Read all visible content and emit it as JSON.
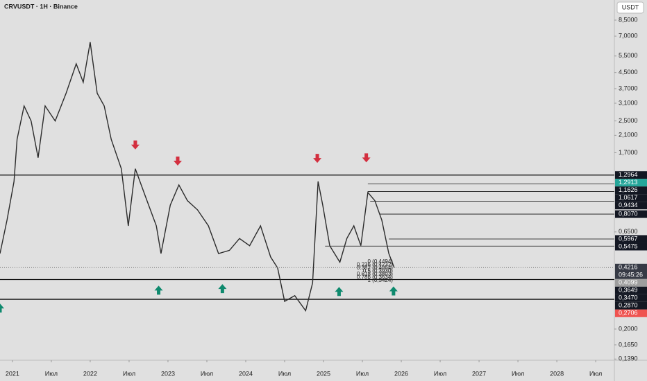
{
  "chart_data": {
    "type": "line",
    "title": "CRVUSDT · 1H · Binance",
    "currency": "USDT",
    "log_y": true,
    "color": "#2b2b2b",
    "ylim": [
      0.137,
      10.85
    ],
    "yticks": [
      {
        "value": 8.5,
        "label": "8,5000"
      },
      {
        "value": 7.0,
        "label": "7,0000"
      },
      {
        "value": 5.5,
        "label": "5,5000"
      },
      {
        "value": 4.5,
        "label": "4,5000"
      },
      {
        "value": 3.7,
        "label": "3,7000"
      },
      {
        "value": 3.1,
        "label": "3,1000"
      },
      {
        "value": 2.5,
        "label": "2,5000"
      },
      {
        "value": 2.1,
        "label": "2,1000"
      },
      {
        "value": 1.7,
        "label": "1,7000"
      },
      {
        "value": 0.65,
        "label": "0,6500"
      },
      {
        "value": 0.2,
        "label": "0,2000"
      },
      {
        "value": 0.165,
        "label": "0,1650"
      },
      {
        "value": 0.139,
        "label": "0,1390"
      }
    ],
    "xlim": [
      2020.84,
      2028.74
    ],
    "xticks": [
      {
        "value": 2021,
        "label": "2021"
      },
      {
        "value": 2021.5,
        "label": "Июл"
      },
      {
        "value": 2022,
        "label": "2022"
      },
      {
        "value": 2022.5,
        "label": "Июл"
      },
      {
        "value": 2023,
        "label": "2023"
      },
      {
        "value": 2023.5,
        "label": "Июл"
      },
      {
        "value": 2024,
        "label": "2024"
      },
      {
        "value": 2024.5,
        "label": "Июл"
      },
      {
        "value": 2025,
        "label": "2025"
      },
      {
        "value": 2025.5,
        "label": "Июл"
      },
      {
        "value": 2026,
        "label": "2026"
      },
      {
        "value": 2026.5,
        "label": "Июл"
      },
      {
        "value": 2027,
        "label": "2027"
      },
      {
        "value": 2027.5,
        "label": "Июл"
      },
      {
        "value": 2028,
        "label": "2028"
      },
      {
        "value": 2028.5,
        "label": "Июл"
      }
    ],
    "x": [
      2020.84,
      2020.93,
      2021.02,
      2021.06,
      2021.15,
      2021.24,
      2021.33,
      2021.42,
      2021.55,
      2021.69,
      2021.82,
      2021.91,
      2022.0,
      2022.09,
      2022.18,
      2022.27,
      2022.4,
      2022.49,
      2022.58,
      2022.71,
      2022.85,
      2022.91,
      2023.03,
      2023.14,
      2023.25,
      2023.38,
      2023.52,
      2023.65,
      2023.79,
      2023.92,
      2024.05,
      2024.19,
      2024.32,
      2024.41,
      2024.5,
      2024.63,
      2024.77,
      2024.86,
      2024.93,
      2024.99,
      2025.08,
      2025.21,
      2025.3,
      2025.39,
      2025.48,
      2025.57,
      2025.66,
      2025.75,
      2025.84,
      2025.91
    ],
    "values": [
      0.5,
      0.75,
      1.2,
      2.0,
      3.0,
      2.5,
      1.6,
      3.0,
      2.5,
      3.5,
      5.0,
      4.0,
      6.5,
      3.5,
      3.0,
      2.0,
      1.4,
      0.7,
      1.4,
      1.0,
      0.7,
      0.5,
      0.9,
      1.15,
      0.95,
      0.85,
      0.7,
      0.5,
      0.52,
      0.6,
      0.55,
      0.7,
      0.48,
      0.42,
      0.28,
      0.3,
      0.25,
      0.35,
      1.2,
      0.9,
      0.55,
      0.45,
      0.6,
      0.7,
      0.55,
      1.05,
      0.95,
      0.75,
      0.5,
      0.42
    ],
    "levels": [
      {
        "value": 1.2964,
        "label": "1,2964"
      },
      {
        "value": 0.3649,
        "label": "0,3649"
      },
      {
        "value": 0.287,
        "label": "0,2870"
      },
      {
        "value": 1.1626,
        "label": "1,1626",
        "from": 2025.57
      },
      {
        "value": 1.0617,
        "label": "1,0617",
        "from": 2025.57
      },
      {
        "value": 0.9434,
        "label": "0,9434",
        "from": 2025.6
      },
      {
        "value": 0.807,
        "label": "0,8070",
        "from": 2025.72
      },
      {
        "value": 0.5967,
        "label": "0,5967",
        "from": 2025.84
      },
      {
        "value": 0.5475,
        "label": "0,5475",
        "from": 2025.02
      }
    ],
    "price_labels": [
      {
        "value": 1.2913,
        "label": "1,2913",
        "color": "#26a69a"
      },
      {
        "value": 0.4216,
        "label": "0,4216",
        "color": "#363a45",
        "countdown": "09:45:26"
      },
      {
        "value": 0.4099,
        "label": "0,4099",
        "color": "#9e9e9e"
      },
      {
        "value": 0.347,
        "label": "0,3470",
        "color": "#131722"
      },
      {
        "value": 0.2706,
        "label": "0,2706",
        "color": "#ef5350"
      }
    ],
    "fib_labels": [
      "0 (0,4494)",
      "0.236 (0,4232)",
      "0.382 (0,4064)",
      "0.5 (0,3930)",
      "0.618 (0,3803)",
      "0.786 (0,3634)",
      "1 (0,3424)"
    ],
    "arrows": [
      {
        "x": 2022.58,
        "price": 1.86,
        "direction": "down"
      },
      {
        "x": 2023.125,
        "price": 1.53,
        "direction": "down"
      },
      {
        "x": 2024.92,
        "price": 1.58,
        "direction": "down"
      },
      {
        "x": 2025.55,
        "price": 1.59,
        "direction": "down"
      },
      {
        "x": 2022.88,
        "price": 0.322,
        "direction": "up"
      },
      {
        "x": 2023.7,
        "price": 0.328,
        "direction": "up"
      },
      {
        "x": 2025.2,
        "price": 0.317,
        "direction": "up"
      },
      {
        "x": 2025.9,
        "price": 0.319,
        "direction": "up"
      },
      {
        "x": 2020.84,
        "price": 0.259,
        "direction": "up"
      }
    ]
  }
}
